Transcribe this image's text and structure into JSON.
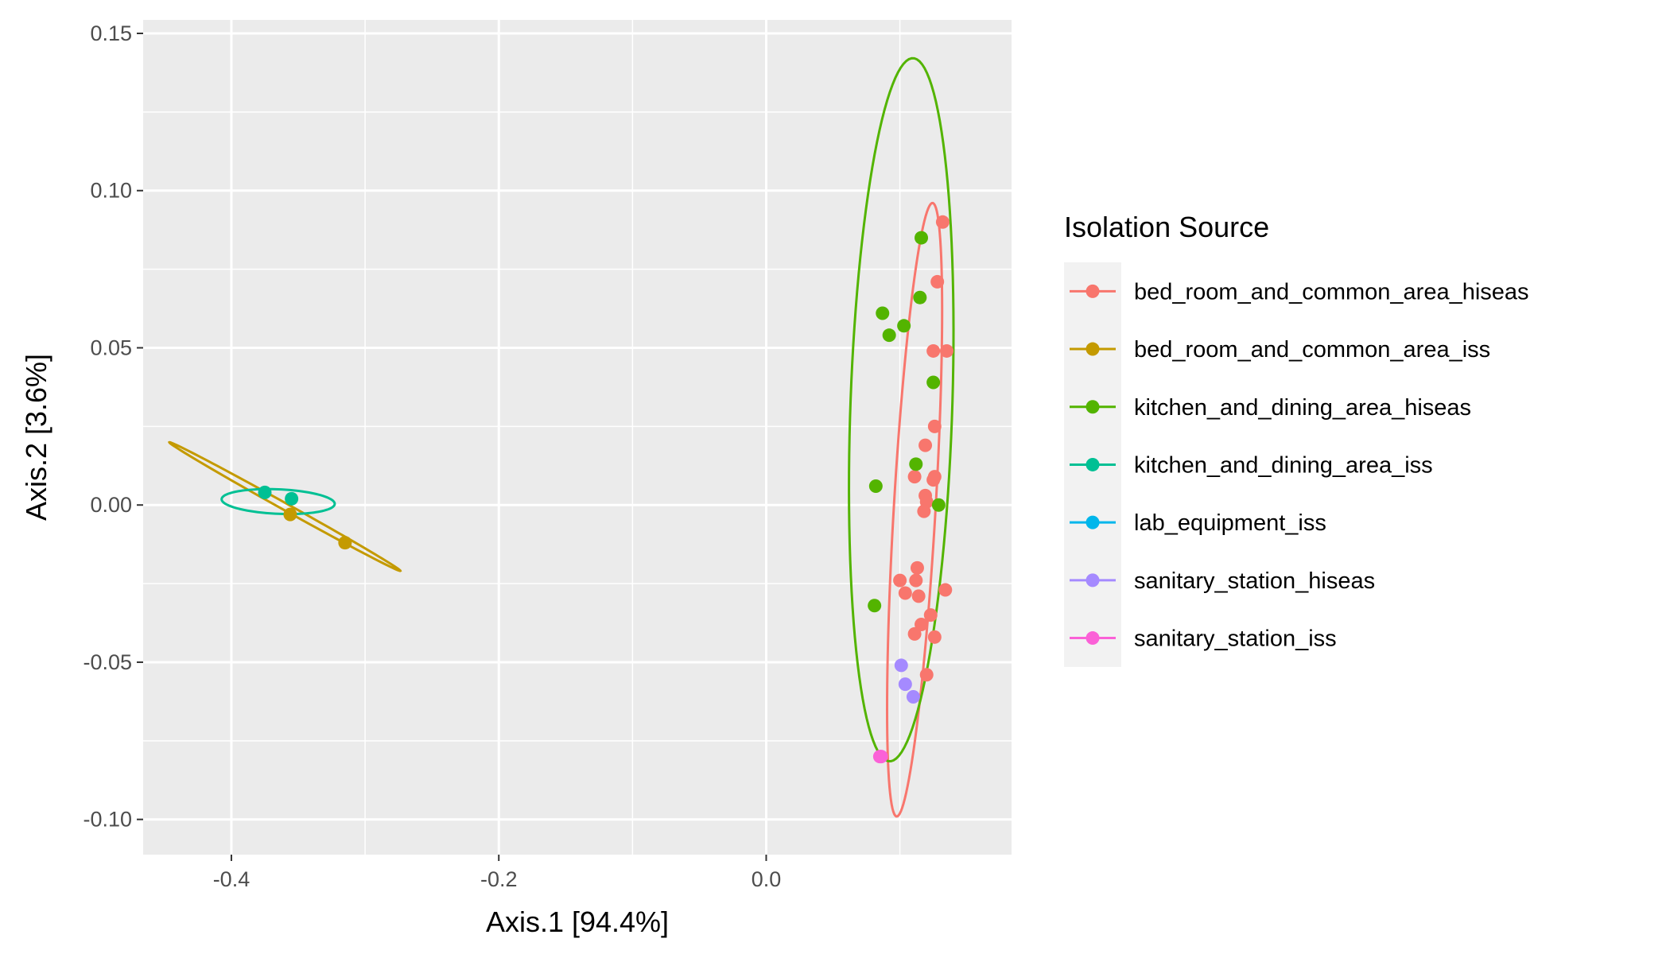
{
  "chart_data": {
    "type": "scatter",
    "xlabel": "Axis.1   [94.4%]",
    "ylabel": "Axis.2   [3.6%]",
    "xlim": [
      -0.466,
      0.1835
    ],
    "ylim": [
      -0.1112,
      0.1543
    ],
    "x_ticks": [
      -0.4,
      -0.2,
      0.0
    ],
    "x_tick_labels": [
      "-0.4",
      "-0.2",
      "0.0"
    ],
    "y_ticks": [
      0.15,
      0.1,
      0.05,
      0.0,
      -0.05,
      -0.1
    ],
    "y_tick_labels": [
      "0.15",
      "0.10",
      "0.05",
      "0.00",
      "-0.05",
      "-0.10"
    ],
    "grid": true,
    "legend_position": "right",
    "legend_title": "Isolation Source",
    "series": [
      {
        "name": "bed_room_and_common_area_hiseas",
        "color": "#F8766D",
        "points": [
          [
            0.132,
            0.09
          ],
          [
            0.128,
            0.071
          ],
          [
            0.125,
            0.049
          ],
          [
            0.135,
            0.049
          ],
          [
            0.126,
            0.025
          ],
          [
            0.119,
            0.019
          ],
          [
            0.111,
            0.009
          ],
          [
            0.126,
            0.009
          ],
          [
            0.125,
            0.008
          ],
          [
            0.119,
            0.003
          ],
          [
            0.12,
            0.001
          ],
          [
            0.118,
            -0.002
          ],
          [
            0.113,
            -0.02
          ],
          [
            0.112,
            -0.024
          ],
          [
            0.1,
            -0.024
          ],
          [
            0.104,
            -0.028
          ],
          [
            0.114,
            -0.029
          ],
          [
            0.134,
            -0.027
          ],
          [
            0.123,
            -0.035
          ],
          [
            0.116,
            -0.038
          ],
          [
            0.111,
            -0.041
          ],
          [
            0.126,
            -0.042
          ],
          [
            0.12,
            -0.054
          ]
        ],
        "ellipse": {
          "center": [
            0.111,
            -0.0015
          ],
          "semi_major": 0.0985,
          "semi_minor": 0.0155,
          "angle_deg": 82.0
        }
      },
      {
        "name": "bed_room_and_common_area_iss",
        "color": "#C49A00",
        "points": [
          [
            -0.356,
            -0.003
          ],
          [
            -0.315,
            -0.012
          ]
        ],
        "ellipse": {
          "center": [
            -0.36,
            -0.0005
          ],
          "semi_major": 0.0888,
          "semi_minor": 0.0012,
          "angle_deg": -13.3
        }
      },
      {
        "name": "kitchen_and_dining_area_hiseas",
        "color": "#53B400",
        "points": [
          [
            0.116,
            0.085
          ],
          [
            0.115,
            0.066
          ],
          [
            0.087,
            0.061
          ],
          [
            0.103,
            0.057
          ],
          [
            0.092,
            0.054
          ],
          [
            0.125,
            0.039
          ],
          [
            0.112,
            0.013
          ],
          [
            0.082,
            0.006
          ],
          [
            0.129,
            0.0
          ],
          [
            0.081,
            -0.032
          ]
        ],
        "ellipse": {
          "center": [
            0.101,
            0.0303
          ],
          "semi_major": 0.1122,
          "semi_minor": 0.038,
          "angle_deg": 85.0
        }
      },
      {
        "name": "kitchen_and_dining_area_iss",
        "color": "#00C094",
        "points": [
          [
            -0.375,
            0.004
          ],
          [
            -0.355,
            0.002
          ]
        ],
        "ellipse": {
          "center": [
            -0.365,
            0.0011
          ],
          "semi_major": 0.0423,
          "semi_minor": 0.0039,
          "angle_deg": -1.0
        }
      },
      {
        "name": "lab_equipment_iss",
        "color": "#00B6EB",
        "points": [],
        "ellipse": null
      },
      {
        "name": "sanitary_station_hiseas",
        "color": "#A58AFF",
        "points": [
          [
            0.101,
            -0.051
          ],
          [
            0.104,
            -0.057
          ],
          [
            0.11,
            -0.061
          ]
        ],
        "ellipse": null
      },
      {
        "name": "sanitary_station_iss",
        "color": "#FB61D7",
        "points": [
          [
            0.085,
            -0.08
          ],
          [
            0.086,
            -0.08
          ]
        ],
        "ellipse": null
      }
    ]
  }
}
